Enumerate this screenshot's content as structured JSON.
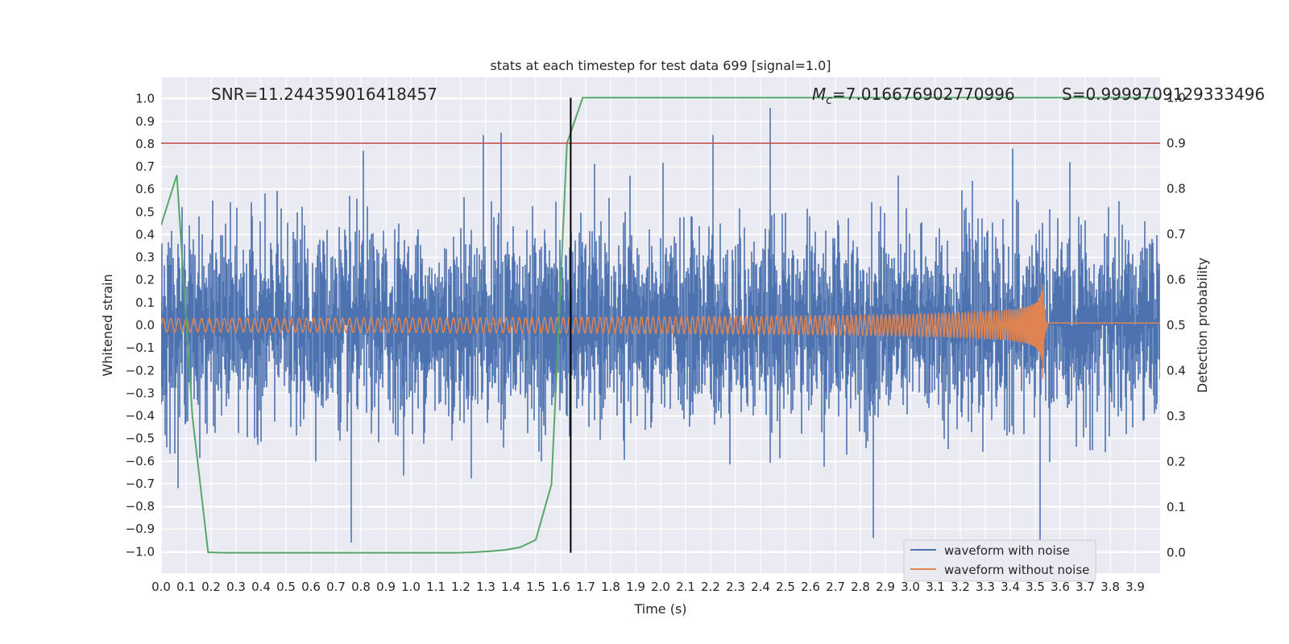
{
  "chart_data": {
    "type": "line",
    "title": "stats at each timestep for test data 699 [signal=1.0]",
    "xlabel": "Time (s)",
    "ylabel": "Whitened strain",
    "y2label": "Detection probability",
    "xlim": [
      0.0,
      4.0
    ],
    "ylim": [
      -1.095,
      1.095
    ],
    "y2lim": [
      -0.045,
      1.045
    ],
    "xticks": [
      "0.0",
      "0.1",
      "0.2",
      "0.3",
      "0.4",
      "0.5",
      "0.6",
      "0.7",
      "0.8",
      "0.9",
      "1.0",
      "1.1",
      "1.2",
      "1.3",
      "1.4",
      "1.5",
      "1.6",
      "1.7",
      "1.8",
      "1.9",
      "2.0",
      "2.1",
      "2.2",
      "2.3",
      "2.4",
      "2.5",
      "2.6",
      "2.7",
      "2.8",
      "2.9",
      "3.0",
      "3.1",
      "3.2",
      "3.3",
      "3.4",
      "3.5",
      "3.6",
      "3.7",
      "3.8",
      "3.9"
    ],
    "yticks": [
      "1.0",
      "0.9",
      "0.8",
      "0.7",
      "0.6",
      "0.5",
      "0.4",
      "0.3",
      "0.2",
      "0.1",
      "0.0",
      "−0.1",
      "−0.2",
      "−0.3",
      "−0.4",
      "−0.5",
      "−0.6",
      "−0.7",
      "−0.8",
      "−0.9",
      "−1.0"
    ],
    "y2ticks": [
      "1.0",
      "0.9",
      "0.8",
      "0.7",
      "0.6",
      "0.5",
      "0.4",
      "0.3",
      "0.2",
      "0.1",
      "0.0"
    ],
    "grid": true,
    "legend_position": "bottom-right",
    "annotations": {
      "snr": "SNR=11.244359016418457",
      "mc_symbol": "M",
      "mc_sub": "c",
      "mc_value": "=7.016676902770996",
      "s": "S=0.9999709129333496"
    },
    "threshold": {
      "y2": 0.9,
      "color": "#c44e52"
    },
    "detection_time": 1.64,
    "series": [
      {
        "name": "waveform with noise",
        "color": "#4c72b0",
        "description": "whitened strain noise, sampled 4096 Hz, amplitude mostly within ±0.6",
        "peaks": [
          [
            0.76,
            -0.96
          ],
          [
            0.81,
            0.77
          ],
          [
            1.36,
            0.85
          ],
          [
            2.44,
            0.96
          ],
          [
            2.21,
            0.84
          ],
          [
            3.41,
            0.78
          ],
          [
            3.52,
            -0.96
          ],
          [
            2.85,
            -0.94
          ],
          [
            1.29,
            0.84
          ]
        ]
      },
      {
        "name": "waveform without noise",
        "color": "#dd8452",
        "description": "chirp signal: frequency ~30 Hz rising to merger near 3.53 s, amplitude 0.03 rising to 0.27, then ringdown ~0.01",
        "merger_time": 3.53,
        "peak_amplitude": 0.27
      },
      {
        "name": "",
        "color": "#55a868",
        "axis": "y2",
        "x": [
          0.0,
          0.063,
          0.125,
          0.188,
          0.25,
          0.313,
          0.375,
          0.438,
          0.5,
          0.563,
          0.625,
          0.688,
          0.75,
          0.813,
          0.875,
          0.938,
          1.0,
          1.063,
          1.125,
          1.188,
          1.25,
          1.313,
          1.375,
          1.438,
          1.5,
          1.563,
          1.625,
          1.688,
          1.75,
          2.0,
          2.5,
          3.0,
          3.5,
          4.0
        ],
        "y": [
          0.72,
          0.83,
          0.3,
          0.001,
          0.0,
          0.0,
          0.0,
          0.0,
          0.0,
          0.0,
          0.0,
          0.0,
          0.0,
          0.0,
          0.0,
          0.0,
          0.0,
          0.0,
          0.0,
          0.0,
          0.001,
          0.003,
          0.006,
          0.012,
          0.028,
          0.15,
          0.9,
          1.0,
          1.0,
          1.0,
          1.0,
          1.0,
          1.0,
          1.0
        ]
      }
    ]
  }
}
